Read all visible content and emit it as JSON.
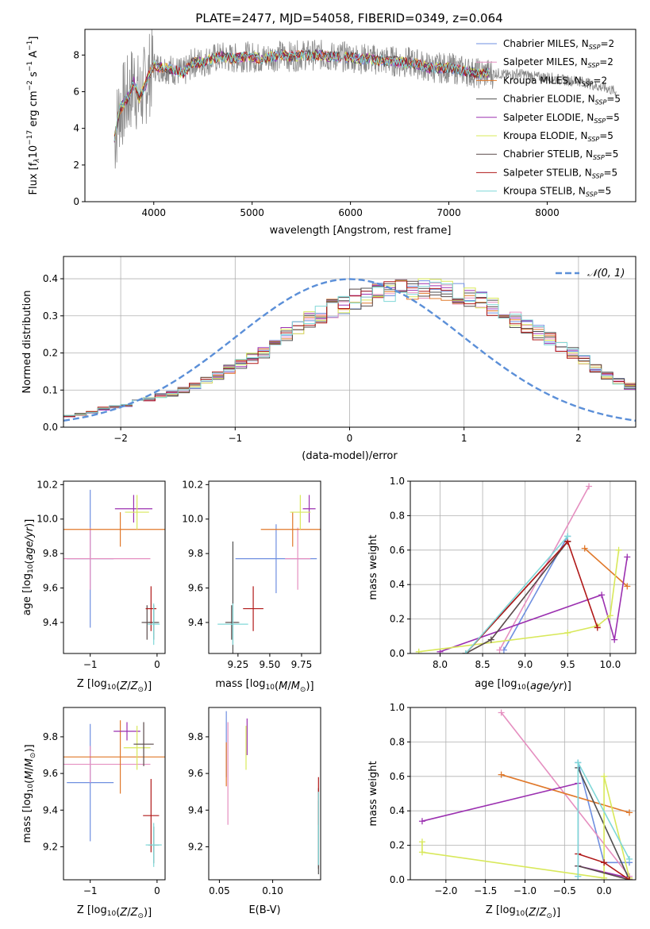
{
  "figure": {
    "title": "PLATE=2477, MJD=54058, FIBERID=0349, z=0.064"
  },
  "models": [
    {
      "name": "Chabrier MILES",
      "nssp": "2",
      "color": "#6f8fe0"
    },
    {
      "name": "Salpeter MILES",
      "nssp": "2",
      "color": "#e58fc0"
    },
    {
      "name": "Kroupa MILES",
      "nssp": "2",
      "color": "#e0782a"
    },
    {
      "name": "Chabrier ELODIE",
      "nssp": "5",
      "color": "#505050"
    },
    {
      "name": "Salpeter ELODIE",
      "nssp": "5",
      "color": "#9b30b0"
    },
    {
      "name": "Kroupa ELODIE",
      "nssp": "5",
      "color": "#d8e85a"
    },
    {
      "name": "Chabrier STELIB",
      "nssp": "5",
      "color": "#5a4a4a"
    },
    {
      "name": "Salpeter STELIB",
      "nssp": "5",
      "color": "#b01818"
    },
    {
      "name": "Kroupa STELIB",
      "nssp": "5",
      "color": "#80d8d8"
    }
  ],
  "chart_data": [
    {
      "id": "spectrum",
      "type": "line",
      "xlabel": "wavelength [Angstrom, rest frame]",
      "ylabel": "Flux [f",
      "xlim": [
        3300,
        8900
      ],
      "ylim": [
        0,
        9.4
      ],
      "xticks": [
        4000,
        5000,
        6000,
        7000,
        8000
      ],
      "yticks": [
        0,
        2,
        4,
        6,
        8
      ],
      "legend": "top-right",
      "grid": false,
      "data_color": "#8a8a8a",
      "spectrum_x": [
        3600,
        3650,
        3700,
        3750,
        3800,
        3850,
        3900,
        3950,
        4000,
        4100,
        4200,
        4300,
        4400,
        4500,
        4600,
        4700,
        4800,
        4900,
        5000,
        5100,
        5200,
        5300,
        5400,
        5500,
        5600,
        5700,
        5800,
        5900,
        6000,
        6100,
        6200,
        6300,
        6400,
        6500,
        6600,
        6700,
        6800,
        6900,
        7000,
        7100,
        7200,
        7300,
        7400,
        7500,
        7600,
        7700,
        7800,
        7900,
        8000,
        8100,
        8200,
        8300,
        8400,
        8500,
        8600,
        8700
      ],
      "spectrum_y": [
        3.4,
        5.0,
        5.4,
        5.8,
        6.6,
        5.6,
        6.2,
        6.9,
        7.4,
        7.3,
        7.2,
        7.0,
        7.6,
        7.6,
        7.8,
        7.9,
        7.8,
        7.9,
        7.9,
        7.8,
        7.9,
        8.0,
        7.9,
        8.0,
        8.0,
        8.0,
        7.9,
        7.9,
        7.9,
        7.8,
        7.8,
        7.7,
        7.7,
        7.6,
        7.6,
        7.5,
        7.3,
        7.3,
        7.3,
        7.2,
        7.1,
        7.0,
        7.0,
        7.0,
        6.9,
        7.0,
        6.9,
        6.8,
        6.8,
        6.7,
        6.6,
        6.6,
        6.5,
        6.3,
        6.2,
        6.0
      ],
      "model_x_range": [
        3600,
        7420
      ]
    },
    {
      "id": "residual-hist",
      "type": "line",
      "xlabel": "(data-model)/error",
      "ylabel": "Normed distribution",
      "xlim": [
        -2.5,
        2.5
      ],
      "ylim": [
        0,
        0.46
      ],
      "xticks": [
        -2,
        -1,
        0,
        1,
        2
      ],
      "yticks": [
        0.0,
        0.1,
        0.2,
        0.3,
        0.4
      ],
      "grid": true,
      "legend": "top-right",
      "legend_label": "𝒩(0, 1)",
      "gauss_color": "#5b8fd8",
      "bin_width": 0.1,
      "bin_start": -2.5,
      "base_values": [
        0.03,
        0.035,
        0.04,
        0.05,
        0.055,
        0.06,
        0.07,
        0.075,
        0.085,
        0.09,
        0.1,
        0.11,
        0.125,
        0.14,
        0.155,
        0.17,
        0.185,
        0.2,
        0.225,
        0.25,
        0.27,
        0.29,
        0.305,
        0.32,
        0.33,
        0.345,
        0.35,
        0.36,
        0.365,
        0.37,
        0.37,
        0.375,
        0.37,
        0.365,
        0.36,
        0.35,
        0.34,
        0.325,
        0.31,
        0.29,
        0.27,
        0.255,
        0.24,
        0.22,
        0.2,
        0.18,
        0.16,
        0.14,
        0.125,
        0.11,
        0.1
      ]
    },
    {
      "id": "age-vs-Z",
      "type": "scatter",
      "xlabel": "Z [log",
      "ylabel": "age  [log",
      "xlim": [
        -1.4,
        0.12
      ],
      "ylim": [
        9.22,
        10.22
      ],
      "xticks": [
        -1,
        0
      ],
      "yticks": [
        9.4,
        9.6,
        9.8,
        10.0,
        10.2
      ],
      "points": [
        {
          "x": -1.0,
          "y": 9.77,
          "xerr": 0.35,
          "yerr": 0.4
        },
        {
          "x": -1.0,
          "y": 9.77,
          "xerr": 0.9,
          "yerr": 0.18
        },
        {
          "x": -0.55,
          "y": 9.94,
          "xerr": 0.9,
          "yerr": 0.1
        },
        {
          "x": -0.05,
          "y": 9.4,
          "xerr": 0.08,
          "yerr": 0.1
        },
        {
          "x": -0.35,
          "y": 10.06,
          "xerr": 0.28,
          "yerr": 0.08
        },
        {
          "x": -0.3,
          "y": 10.04,
          "xerr": 0.18,
          "yerr": 0.1
        },
        {
          "x": -0.15,
          "y": 9.4,
          "xerr": 0.08,
          "yerr": 0.1
        },
        {
          "x": -0.09,
          "y": 9.48,
          "xerr": 0.08,
          "yerr": 0.13
        },
        {
          "x": -0.05,
          "y": 9.39,
          "xerr": 0.09,
          "yerr": 0.12
        }
      ]
    },
    {
      "id": "age-vs-mass",
      "type": "scatter",
      "xlabel": "mass [log",
      "ylabel": "",
      "xlim": [
        9.02,
        9.9
      ],
      "ylim": [
        9.22,
        10.22
      ],
      "xticks": [
        9.25,
        9.5,
        9.75
      ],
      "yticks": [
        9.4,
        9.6,
        9.8,
        10.0,
        10.2
      ],
      "points": [
        {
          "x": 9.55,
          "y": 9.77,
          "xerr": 0.32,
          "yerr": 0.2
        },
        {
          "x": 9.72,
          "y": 9.77,
          "xerr": 0.1,
          "yerr": 0.18
        },
        {
          "x": 9.68,
          "y": 9.94,
          "xerr": 0.25,
          "yerr": 0.1
        },
        {
          "x": 9.21,
          "y": 9.4,
          "xerr": 0.05,
          "yerr": 0.47
        },
        {
          "x": 9.81,
          "y": 10.06,
          "xerr": 0.05,
          "yerr": 0.08
        },
        {
          "x": 9.74,
          "y": 10.04,
          "xerr": 0.08,
          "yerr": 0.1
        },
        {
          "x": 9.2,
          "y": 9.4,
          "xerr": 0.05,
          "yerr": 0.1
        },
        {
          "x": 9.37,
          "y": 9.48,
          "xerr": 0.08,
          "yerr": 0.13
        },
        {
          "x": 9.21,
          "y": 9.39,
          "xerr": 0.12,
          "yerr": 0.12
        }
      ]
    },
    {
      "id": "weight-vs-age",
      "type": "line",
      "xlabel": "age  [log",
      "ylabel": "mass weight",
      "xlim": [
        7.65,
        10.3
      ],
      "ylim": [
        0,
        1
      ],
      "xticks": [
        8.0,
        8.5,
        9.0,
        9.5,
        10.0
      ],
      "yticks": [
        0.0,
        0.2,
        0.4,
        0.6,
        0.8,
        1.0
      ],
      "grid": true,
      "series": [
        {
          "x": [
            8.75,
            9.5
          ],
          "y": [
            0.02,
            0.68
          ]
        },
        {
          "x": [
            8.7,
            9.75
          ],
          "y": [
            0.02,
            0.97
          ]
        },
        {
          "x": [
            9.7,
            10.2
          ],
          "y": [
            0.61,
            0.39
          ]
        },
        {
          "x": [
            8.3,
            9.5
          ],
          "y": [
            0.0,
            0.65
          ]
        },
        {
          "x": [
            8.0,
            9.9,
            10.05,
            10.2
          ],
          "y": [
            0.01,
            0.34,
            0.08,
            0.56
          ]
        },
        {
          "x": [
            7.75,
            9.5,
            9.85,
            10.0,
            10.1
          ],
          "y": [
            0.01,
            0.12,
            0.16,
            0.22,
            0.6
          ]
        },
        {
          "x": [
            8.3,
            8.6,
            9.5
          ],
          "y": [
            0.0,
            0.08,
            0.65
          ]
        },
        {
          "x": [
            8.3,
            9.5,
            9.85
          ],
          "y": [
            0.0,
            0.65,
            0.15
          ]
        },
        {
          "x": [
            8.3,
            9.5
          ],
          "y": [
            0.0,
            0.68
          ]
        }
      ]
    },
    {
      "id": "mass-vs-Z",
      "type": "scatter",
      "xlabel": "Z [log",
      "ylabel": "mass [log",
      "xlim": [
        -1.4,
        0.12
      ],
      "ylim": [
        9.02,
        9.96
      ],
      "xticks": [
        -1,
        0
      ],
      "yticks": [
        9.2,
        9.4,
        9.6,
        9.8
      ],
      "points": [
        {
          "x": -1.0,
          "y": 9.55,
          "xerr": 0.35,
          "yerr": 0.32
        },
        {
          "x": -1.0,
          "y": 9.65,
          "xerr": 0.9,
          "yerr": 0.1
        },
        {
          "x": -0.55,
          "y": 9.69,
          "xerr": 0.9,
          "yerr": 0.2
        },
        {
          "x": -0.05,
          "y": 9.21,
          "xerr": 0.08,
          "yerr": 0.1
        },
        {
          "x": -0.45,
          "y": 9.83,
          "xerr": 0.2,
          "yerr": 0.05
        },
        {
          "x": -0.3,
          "y": 9.74,
          "xerr": 0.2,
          "yerr": 0.12
        },
        {
          "x": -0.2,
          "y": 9.76,
          "xerr": 0.15,
          "yerr": 0.12
        },
        {
          "x": -0.09,
          "y": 9.37,
          "xerr": 0.12,
          "yerr": 0.2
        },
        {
          "x": -0.05,
          "y": 9.21,
          "xerr": 0.12,
          "yerr": 0.12
        }
      ]
    },
    {
      "id": "mass-vs-ebv",
      "type": "scatter",
      "xlabel": "E(B-V)",
      "ylabel": "",
      "xlim": [
        0.04,
        0.145
      ],
      "ylim": [
        9.02,
        9.96
      ],
      "xticks": [
        0.05,
        0.1
      ],
      "yticks": [
        9.2,
        9.4,
        9.6,
        9.8
      ],
      "points": [
        {
          "x": 0.0565,
          "y": 9.76,
          "xerr": 0,
          "yerr": 0.18
        },
        {
          "x": 0.058,
          "y": 9.6,
          "xerr": 0,
          "yerr": 0.28
        },
        {
          "x": 0.0565,
          "y": 9.65,
          "xerr": 0,
          "yerr": 0.12
        },
        {
          "x": 0.143,
          "y": 9.25,
          "xerr": 0,
          "yerr": 0.2
        },
        {
          "x": 0.076,
          "y": 9.8,
          "xerr": 0,
          "yerr": 0.1
        },
        {
          "x": 0.075,
          "y": 9.74,
          "xerr": 0,
          "yerr": 0.12
        },
        {
          "x": 0.143,
          "y": 9.3,
          "xerr": 0,
          "yerr": 0.22
        },
        {
          "x": 0.143,
          "y": 9.45,
          "xerr": 0,
          "yerr": 0.13
        },
        {
          "x": 0.143,
          "y": 9.3,
          "xerr": 0,
          "yerr": 0.2
        }
      ]
    },
    {
      "id": "weight-vs-Z",
      "type": "line",
      "xlabel": "Z [log",
      "ylabel": "mass weight",
      "xlim": [
        -2.45,
        0.4
      ],
      "ylim": [
        0,
        1
      ],
      "xticks": [
        -2.0,
        -1.5,
        -1.0,
        -0.5,
        0.0
      ],
      "yticks": [
        0.0,
        0.2,
        0.4,
        0.6,
        0.8,
        1.0
      ],
      "grid": true,
      "series": [
        {
          "x": [
            -0.33,
            -0.33,
            0.0,
            0.32
          ],
          "y": [
            0.02,
            0.68,
            0.1,
            0.1
          ]
        },
        {
          "x": [
            -1.3,
            0.32
          ],
          "y": [
            0.97,
            0.02
          ]
        },
        {
          "x": [
            -1.3,
            0.32
          ],
          "y": [
            0.61,
            0.39
          ]
        },
        {
          "x": [
            -0.33,
            0.32
          ],
          "y": [
            0.65,
            0.0
          ]
        },
        {
          "x": [
            -2.3,
            -0.33,
            -0.33,
            0.32
          ],
          "y": [
            0.34,
            0.56,
            0.08,
            0.01
          ]
        },
        {
          "x": [
            -2.3,
            -2.3,
            0.0,
            0.0,
            0.32
          ],
          "y": [
            0.22,
            0.16,
            0.01,
            0.6,
            0.01
          ]
        },
        {
          "x": [
            -0.33,
            0.32
          ],
          "y": [
            0.08,
            0.0
          ]
        },
        {
          "x": [
            -0.33,
            0.0,
            0.32
          ],
          "y": [
            0.15,
            0.1,
            0.0
          ]
        },
        {
          "x": [
            -0.33,
            -0.33,
            0.32
          ],
          "y": [
            0.02,
            0.68,
            0.12
          ]
        }
      ]
    }
  ]
}
